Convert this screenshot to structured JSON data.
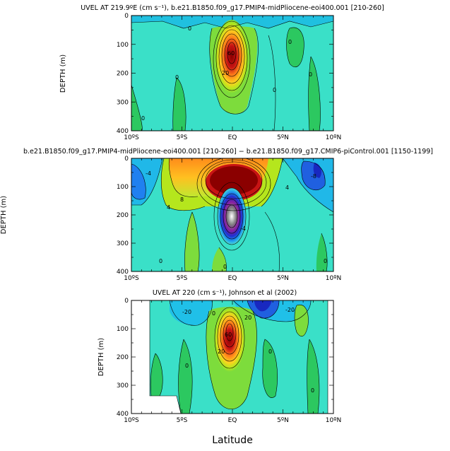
{
  "chart_data": [
    {
      "type": "contour",
      "title": "UVEL AT 219.9ºE (cm s⁻¹), b.e21.B1850.f09_g17.PMIP4-midPliocene-eoi400.001 [210-260]",
      "ylabel": "DEPTH (m)",
      "xlabel": "",
      "x_ticks": [
        "10ºS",
        "5ºS",
        "EQ",
        "5ºN",
        "10ºN"
      ],
      "y_ticks": [
        "0",
        "100",
        "200",
        "300",
        "400"
      ],
      "xlim": [
        -10,
        10
      ],
      "ylim": [
        400,
        0
      ],
      "contour_labels": [
        "0",
        "20",
        "60",
        "0",
        "0",
        "0",
        "0",
        "0"
      ]
    },
    {
      "type": "contour",
      "title": "b.e21.B1850.f09_g17.PMIP4-midPliocene-eoi400.001 [210-260] − b.e21.B1850.f09_g17.CMIP6-piControl.001 [1150-1199]",
      "ylabel": "DEPTH (m)",
      "xlabel": "",
      "x_ticks": [
        "10ºS",
        "5ºS",
        "EQ",
        "5ºN",
        "10ºN"
      ],
      "y_ticks": [
        "0",
        "100",
        "200",
        "300",
        "400"
      ],
      "xlim": [
        -10,
        10
      ],
      "ylim": [
        400,
        0
      ],
      "contour_labels": [
        "-4",
        "-8",
        "4",
        "8",
        "-4",
        "4",
        "0",
        "0",
        "0"
      ]
    },
    {
      "type": "contour",
      "title": "UVEL AT 220 (cm s⁻¹), Johnson et al (2002)",
      "ylabel": "DEPTH (m)",
      "xlabel": "Latitude",
      "x_ticks": [
        "10ºS",
        "5ºS",
        "EQ",
        "5ºN",
        "10ºN"
      ],
      "y_ticks": [
        "0",
        "100",
        "200",
        "300",
        "400"
      ],
      "xlim": [
        -10,
        10
      ],
      "ylim": [
        400,
        0
      ],
      "contour_labels": [
        "-20",
        "-20",
        "0",
        "20",
        "60",
        "20",
        "0",
        "0",
        "0"
      ]
    }
  ]
}
